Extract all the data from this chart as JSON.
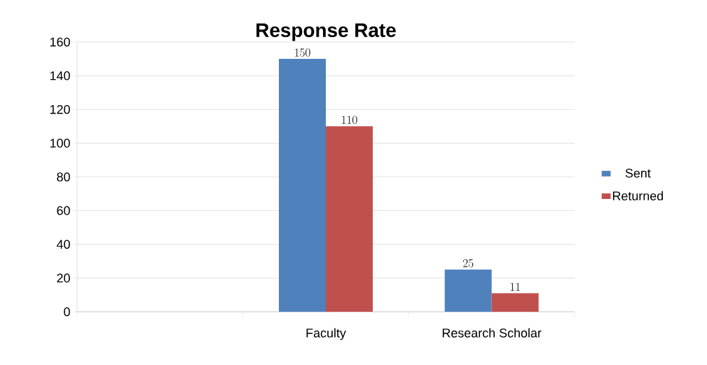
{
  "chart_data": {
    "type": "bar",
    "title": "Response Rate",
    "categories": [
      null,
      "Faculty",
      "Research Scholar"
    ],
    "series": [
      {
        "name": "Sent",
        "color": "#4f81bd",
        "values": [
          null,
          150,
          25
        ]
      },
      {
        "name": "Returned",
        "color": "#c0504d",
        "values": [
          null,
          110,
          11
        ]
      }
    ],
    "ylim": [
      0,
      160
    ],
    "yticks": [
      0,
      20,
      40,
      60,
      80,
      100,
      120,
      140,
      160
    ],
    "grid": "y",
    "legend": "right",
    "data_labels": true
  }
}
